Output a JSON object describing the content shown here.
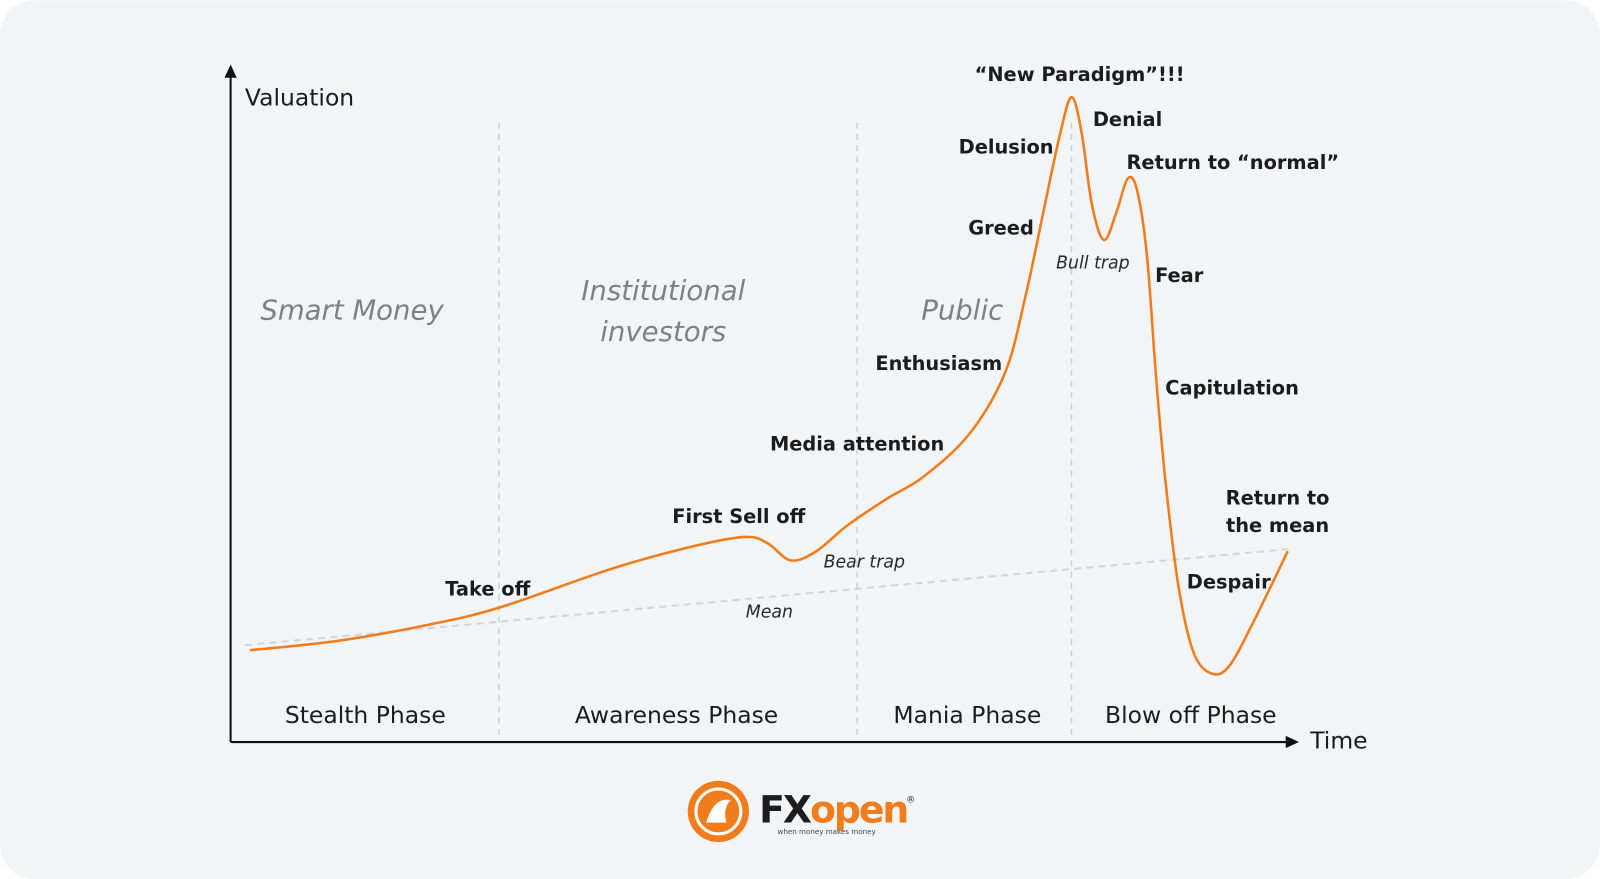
{
  "axes": {
    "y_label": "Valuation",
    "x_label": "Time"
  },
  "groups": [
    {
      "lines": [
        "Smart Money"
      ]
    },
    {
      "lines": [
        "Institutional",
        "investors"
      ]
    },
    {
      "lines": [
        "Public"
      ]
    }
  ],
  "phases": [
    "Stealth Phase",
    "Awareness Phase",
    "Mania Phase",
    "Blow off Phase"
  ],
  "stages": [
    {
      "lines": [
        "Take off"
      ]
    },
    {
      "lines": [
        "First Sell off"
      ]
    },
    {
      "lines": [
        "Media attention"
      ]
    },
    {
      "lines": [
        "Enthusiasm"
      ]
    },
    {
      "lines": [
        "Greed"
      ]
    },
    {
      "lines": [
        "Delusion"
      ]
    },
    {
      "lines": [
        "“New Paradigm”!!!"
      ]
    },
    {
      "lines": [
        "Denial"
      ]
    },
    {
      "lines": [
        "Return to “normal”"
      ]
    },
    {
      "lines": [
        "Fear"
      ]
    },
    {
      "lines": [
        "Capitulation"
      ]
    },
    {
      "lines": [
        "Despair"
      ]
    },
    {
      "lines": [
        "Return to",
        "the mean"
      ]
    }
  ],
  "notes": [
    "Bear trap",
    "Mean",
    "Bull trap"
  ],
  "logo": {
    "brand_fx": "FX",
    "brand_open": "open",
    "registered": "®",
    "tagline": "when money makes money"
  }
}
